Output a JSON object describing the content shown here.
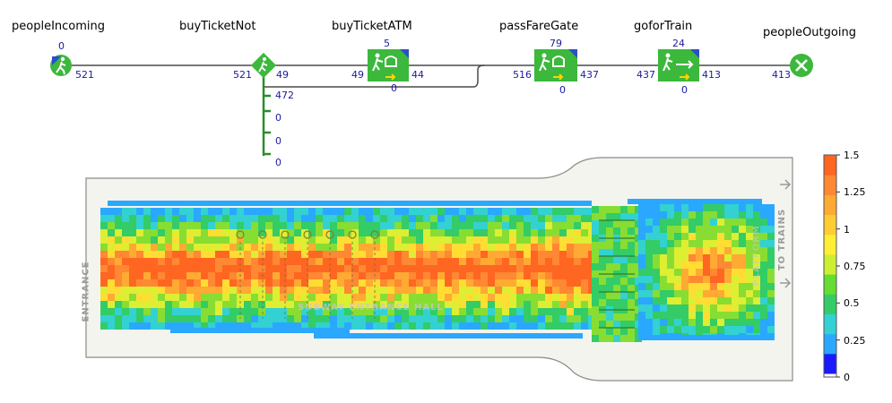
{
  "flowchart": {
    "blocks": [
      {
        "id": "peopleIncoming",
        "label": "peopleIncoming",
        "queue": "0",
        "out": "521"
      },
      {
        "id": "buyTicketNot",
        "label": "buyTicketNot",
        "in": "521",
        "out": "49",
        "out2": "472",
        "extra": [
          "0",
          "0",
          "0"
        ]
      },
      {
        "id": "buyTicketATM",
        "label": "buyTicketATM",
        "queue": "5",
        "in": "49",
        "out": "44",
        "bottom": "0"
      },
      {
        "id": "passFareGate",
        "label": "passFareGate",
        "queue": "79",
        "in": "516",
        "out": "437",
        "bottom": "0"
      },
      {
        "id": "goforTrain",
        "label": "goforTrain",
        "queue": "24",
        "in": "437",
        "out": "413",
        "bottom": "0"
      },
      {
        "id": "peopleOutgoing",
        "label": "peopleOutgoing",
        "in": "413"
      }
    ]
  },
  "floor": {
    "left_label": "ENTRANCE",
    "right_label": "TO TRAINS",
    "center_label": "SUBWAY ENTRANCE HALL",
    "right_inner_label": "PLATFORM"
  },
  "legend": {
    "ticks": [
      "1.5",
      "1.25",
      "1",
      "0.75",
      "0.5",
      "0.25",
      "0"
    ],
    "colors": [
      "#1a1aff",
      "#2aa8ff",
      "#33d1d1",
      "#33cc66",
      "#66dd33",
      "#ccee33",
      "#ffee33",
      "#ffcc33",
      "#ffaa33",
      "#ff8833",
      "#ff6622"
    ]
  },
  "colors": {
    "block_green": "#3cb83c",
    "line": "#4a4a4a",
    "branch": "#2e8b2e",
    "accent_blue": "#2a4fc8",
    "arrow_yellow": "#ffd400"
  }
}
